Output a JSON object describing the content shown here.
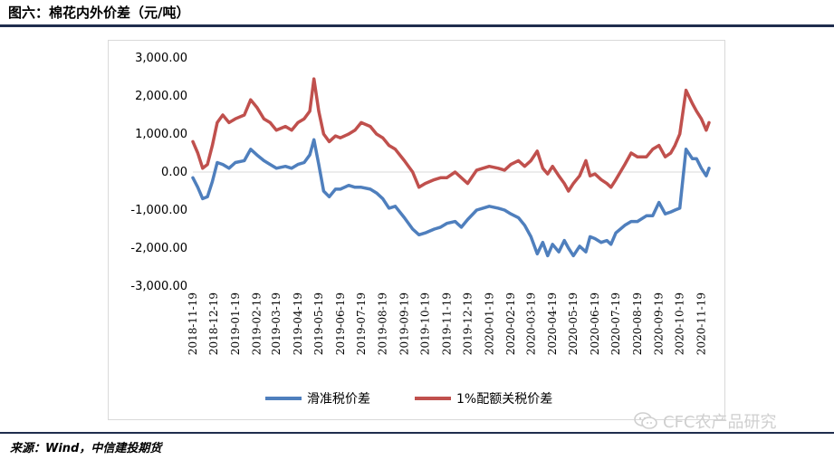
{
  "title": "图六：棉花内外价差（元/吨）",
  "source": "来源：Wind，中信建投期货",
  "watermark": "CFC农产品研究",
  "colors": {
    "series_blue": "#4f7fbd",
    "series_red": "#c0504d",
    "rule": "#1f2d4d"
  },
  "chart_data": {
    "type": "line",
    "title": "",
    "xlabel": "",
    "ylabel": "",
    "ylim": [
      -3000,
      3000
    ],
    "yticks": [
      3000,
      2000,
      1000,
      0,
      -1000,
      -2000,
      -3000
    ],
    "ytick_labels": [
      "3,000.00",
      "2,000.00",
      "1,000.00",
      "0.00",
      "-1,000.00",
      "-2,000.00",
      "-3,000.00"
    ],
    "xlim": [
      "2018-11-19",
      "2020-11-30"
    ],
    "xtick_labels": [
      "2018-11-19",
      "2018-12-19",
      "2019-01-19",
      "2019-02-19",
      "2019-03-19",
      "2019-04-19",
      "2019-05-19",
      "2019-06-19",
      "2019-07-19",
      "2019-08-19",
      "2019-09-19",
      "2019-10-19",
      "2019-11-19",
      "2019-12-19",
      "2020-01-19",
      "2020-02-19",
      "2020-03-19",
      "2020-04-19",
      "2020-05-19",
      "2020-06-19",
      "2020-07-19",
      "2020-08-19",
      "2020-09-19",
      "2020-10-19",
      "2020-11-19"
    ],
    "grid": false,
    "legend": "bottom",
    "series": [
      {
        "name": "滑准税价差",
        "color": "#4f7fbd",
        "x": [
          "2018-11-19",
          "2018-11-26",
          "2018-12-03",
          "2018-12-10",
          "2018-12-17",
          "2018-12-24",
          "2019-01-01",
          "2019-01-10",
          "2019-01-19",
          "2019-02-01",
          "2019-02-10",
          "2019-02-19",
          "2019-03-01",
          "2019-03-10",
          "2019-03-19",
          "2019-04-01",
          "2019-04-10",
          "2019-04-19",
          "2019-04-28",
          "2019-05-06",
          "2019-05-12",
          "2019-05-19",
          "2019-05-26",
          "2019-06-03",
          "2019-06-12",
          "2019-06-19",
          "2019-07-01",
          "2019-07-10",
          "2019-07-19",
          "2019-08-01",
          "2019-08-10",
          "2019-08-19",
          "2019-08-28",
          "2019-09-06",
          "2019-09-19",
          "2019-10-01",
          "2019-10-10",
          "2019-10-19",
          "2019-11-01",
          "2019-11-10",
          "2019-11-19",
          "2019-12-01",
          "2019-12-10",
          "2019-12-19",
          "2020-01-01",
          "2020-01-10",
          "2020-01-19",
          "2020-02-01",
          "2020-02-10",
          "2020-02-19",
          "2020-03-01",
          "2020-03-10",
          "2020-03-19",
          "2020-03-28",
          "2020-04-05",
          "2020-04-12",
          "2020-04-19",
          "2020-04-28",
          "2020-05-06",
          "2020-05-12",
          "2020-05-19",
          "2020-05-28",
          "2020-06-06",
          "2020-06-12",
          "2020-06-19",
          "2020-06-28",
          "2020-07-06",
          "2020-07-12",
          "2020-07-19",
          "2020-08-01",
          "2020-08-10",
          "2020-08-19",
          "2020-09-01",
          "2020-09-10",
          "2020-09-19",
          "2020-09-28",
          "2020-10-06",
          "2020-10-12",
          "2020-10-19",
          "2020-10-28",
          "2020-11-06",
          "2020-11-12",
          "2020-11-19",
          "2020-11-26",
          "2020-11-30"
        ],
        "values": [
          -150,
          -400,
          -700,
          -650,
          -250,
          250,
          200,
          100,
          250,
          300,
          600,
          450,
          300,
          200,
          100,
          150,
          100,
          200,
          250,
          450,
          850,
          200,
          -500,
          -650,
          -450,
          -450,
          -350,
          -400,
          -400,
          -450,
          -550,
          -700,
          -950,
          -900,
          -1200,
          -1500,
          -1650,
          -1600,
          -1500,
          -1450,
          -1350,
          -1300,
          -1450,
          -1250,
          -1000,
          -950,
          -900,
          -950,
          -1000,
          -1100,
          -1200,
          -1400,
          -1700,
          -2150,
          -1850,
          -2200,
          -1900,
          -2100,
          -1800,
          -2000,
          -2200,
          -1950,
          -2100,
          -1700,
          -1750,
          -1850,
          -1800,
          -1900,
          -1600,
          -1400,
          -1300,
          -1300,
          -1150,
          -1150,
          -800,
          -1100,
          -1050,
          -1000,
          -950,
          600,
          350,
          350,
          100,
          -100,
          100
        ]
      },
      {
        "name": "1%配额关税价差",
        "color": "#c0504d",
        "x": [
          "2018-11-19",
          "2018-11-26",
          "2018-12-03",
          "2018-12-10",
          "2018-12-17",
          "2018-12-24",
          "2019-01-01",
          "2019-01-10",
          "2019-01-19",
          "2019-02-01",
          "2019-02-10",
          "2019-02-19",
          "2019-03-01",
          "2019-03-10",
          "2019-03-19",
          "2019-04-01",
          "2019-04-10",
          "2019-04-19",
          "2019-04-28",
          "2019-05-06",
          "2019-05-12",
          "2019-05-19",
          "2019-05-26",
          "2019-06-03",
          "2019-06-12",
          "2019-06-19",
          "2019-07-01",
          "2019-07-10",
          "2019-07-19",
          "2019-08-01",
          "2019-08-10",
          "2019-08-19",
          "2019-08-28",
          "2019-09-06",
          "2019-09-19",
          "2019-10-01",
          "2019-10-10",
          "2019-10-19",
          "2019-11-01",
          "2019-11-10",
          "2019-11-19",
          "2019-12-01",
          "2019-12-10",
          "2019-12-19",
          "2020-01-01",
          "2020-01-10",
          "2020-01-19",
          "2020-02-01",
          "2020-02-10",
          "2020-02-19",
          "2020-03-01",
          "2020-03-10",
          "2020-03-19",
          "2020-03-28",
          "2020-04-05",
          "2020-04-12",
          "2020-04-19",
          "2020-04-28",
          "2020-05-06",
          "2020-05-12",
          "2020-05-19",
          "2020-05-28",
          "2020-06-06",
          "2020-06-12",
          "2020-06-19",
          "2020-06-28",
          "2020-07-06",
          "2020-07-12",
          "2020-07-19",
          "2020-08-01",
          "2020-08-10",
          "2020-08-19",
          "2020-09-01",
          "2020-09-10",
          "2020-09-19",
          "2020-09-28",
          "2020-10-06",
          "2020-10-12",
          "2020-10-19",
          "2020-10-28",
          "2020-11-06",
          "2020-11-12",
          "2020-11-19",
          "2020-11-26",
          "2020-11-30"
        ],
        "values": [
          800,
          500,
          100,
          200,
          700,
          1300,
          1500,
          1300,
          1400,
          1500,
          1900,
          1700,
          1400,
          1300,
          1100,
          1200,
          1100,
          1300,
          1400,
          1600,
          2450,
          1600,
          1000,
          800,
          950,
          900,
          1000,
          1100,
          1300,
          1200,
          1000,
          900,
          700,
          600,
          300,
          0,
          -400,
          -300,
          -200,
          -150,
          -150,
          0,
          -150,
          -300,
          50,
          100,
          150,
          100,
          50,
          200,
          300,
          150,
          300,
          550,
          100,
          -50,
          150,
          -100,
          -300,
          -500,
          -300,
          -100,
          300,
          -100,
          -50,
          -200,
          -300,
          -400,
          -200,
          200,
          500,
          400,
          400,
          600,
          700,
          400,
          500,
          700,
          1000,
          2150,
          1800,
          1600,
          1400,
          1100,
          1300
        ]
      }
    ]
  }
}
